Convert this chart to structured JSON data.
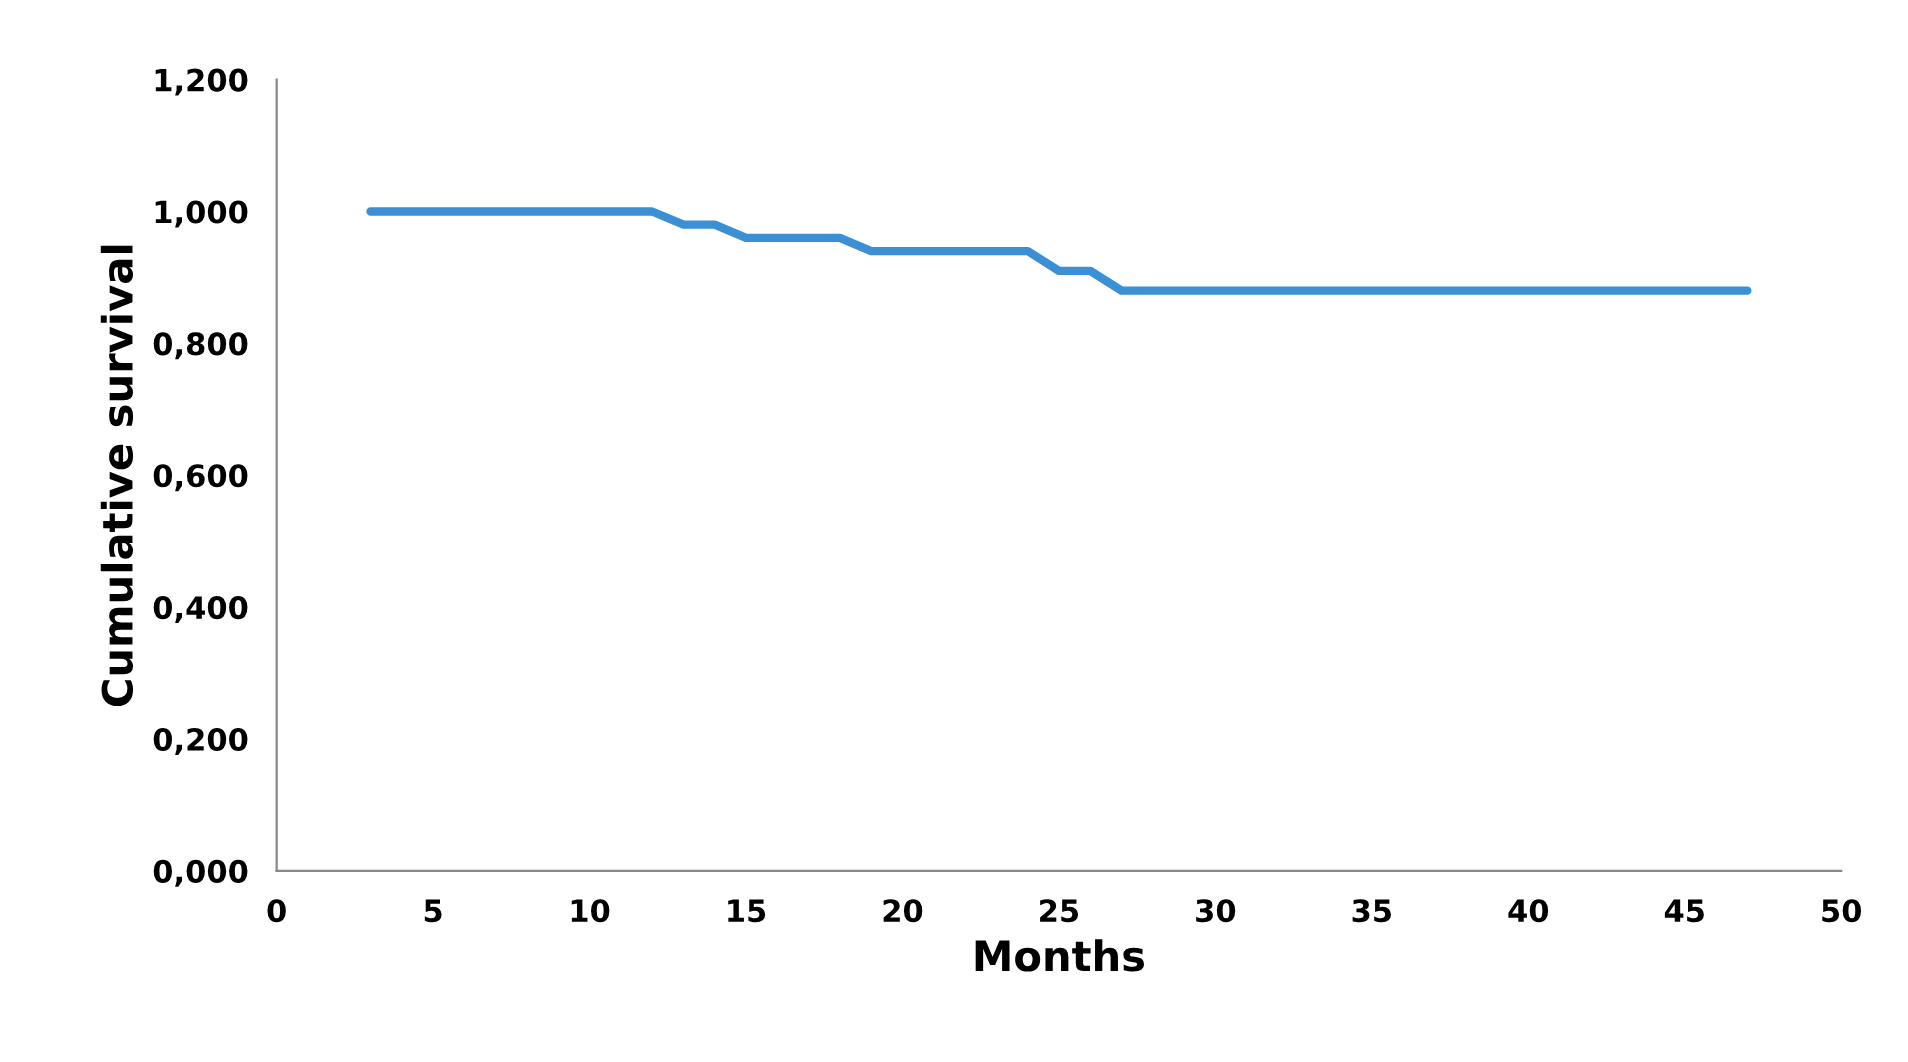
{
  "chart_data": {
    "type": "line",
    "xlabel": "Months",
    "ylabel": "Cumulative survival",
    "x": [
      3,
      12,
      13,
      14,
      15,
      18,
      19,
      24,
      25,
      26,
      27,
      47
    ],
    "series": [
      {
        "color": "#3b8fd4",
        "values": [
          1.0,
          1.0,
          0.98,
          0.98,
          0.96,
          0.96,
          0.94,
          0.94,
          0.91,
          0.91,
          0.88,
          0.88
        ]
      }
    ],
    "xlim": [
      0,
      50
    ],
    "xticks": [
      0,
      5,
      10,
      15,
      20,
      25,
      30,
      35,
      40,
      45,
      50
    ],
    "ylim": [
      0,
      1.2
    ],
    "yticks": [
      {
        "value": 0,
        "label": "0,000"
      },
      {
        "value": 0.2,
        "label": "0,200"
      },
      {
        "value": 0.4,
        "label": "0,400"
      },
      {
        "value": 0.6,
        "label": "0,600"
      },
      {
        "value": 0.8,
        "label": "0,800"
      },
      {
        "value": 1.0,
        "label": "1,000"
      },
      {
        "value": 1.2,
        "label": "1,200"
      }
    ],
    "grid": false,
    "legend": false,
    "marker": "none",
    "line_style": "solid"
  }
}
